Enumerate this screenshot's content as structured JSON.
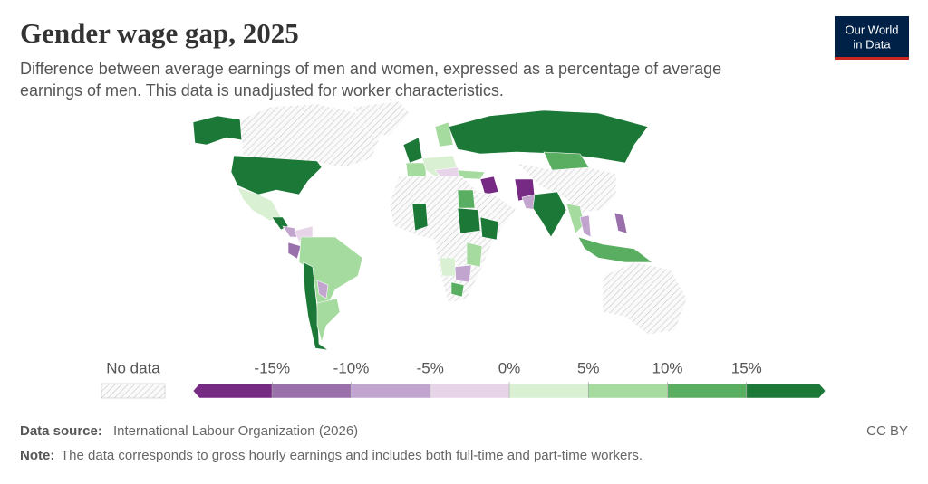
{
  "header": {
    "title": "Gender wage gap, 2025",
    "subtitle_lines": [
      "Difference between average earnings of men and women, expressed as a percentage of average",
      "earnings of men. This data is unadjusted for worker characteristics."
    ],
    "logo_lines": [
      "Our World",
      "in Data"
    ]
  },
  "legend": {
    "no_data_label": "No data",
    "lim": [
      -20,
      20
    ],
    "ticks": [
      {
        "value": -15,
        "label": "-15%"
      },
      {
        "value": -10,
        "label": "-10%"
      },
      {
        "value": -5,
        "label": "-5%"
      },
      {
        "value": 0,
        "label": "0%"
      },
      {
        "value": 5,
        "label": "5%"
      },
      {
        "value": 10,
        "label": "10%"
      },
      {
        "value": 15,
        "label": "15%"
      }
    ],
    "colors": [
      "#762a83",
      "#9970ab",
      "#c2a5cf",
      "#e7d4e8",
      "#d9f0d3",
      "#a6dba0",
      "#5aae61",
      "#1b7837"
    ]
  },
  "footer": {
    "source_label": "Data source:",
    "source": "International Labour Organization (2026)",
    "note_label": "Note:",
    "note": "The data corresponds to gross hourly earnings and includes both full-time and part-time workers.",
    "license": "CC BY"
  }
}
